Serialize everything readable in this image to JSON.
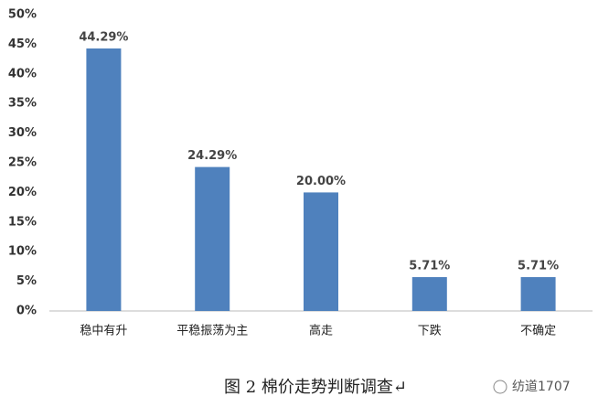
{
  "chart_data": {
    "type": "bar",
    "categories": [
      "稳中有升",
      "平稳振荡为主",
      "高走",
      "下跌",
      "不确定"
    ],
    "values": [
      44.29,
      24.29,
      20.0,
      5.71,
      5.71
    ],
    "value_labels": [
      "44.29%",
      "24.29%",
      "20.00%",
      "5.71%",
      "5.71%"
    ],
    "color": "#4f81bd",
    "ylim": [
      0,
      50
    ],
    "yticks": [
      {
        "value": 0,
        "label": "0%"
      },
      {
        "value": 5,
        "label": "5%"
      },
      {
        "value": 10,
        "label": "10%"
      },
      {
        "value": 15,
        "label": "15%"
      },
      {
        "value": 20,
        "label": "20%"
      },
      {
        "value": 25,
        "label": "25%"
      },
      {
        "value": 30,
        "label": "30%"
      },
      {
        "value": 35,
        "label": "35%"
      },
      {
        "value": 40,
        "label": "40%"
      },
      {
        "value": 45,
        "label": "45%"
      },
      {
        "value": 50,
        "label": "50%"
      }
    ],
    "grid": false,
    "caption": "图 2  棉价走势判断调查↵",
    "watermark": "纺道1707"
  }
}
